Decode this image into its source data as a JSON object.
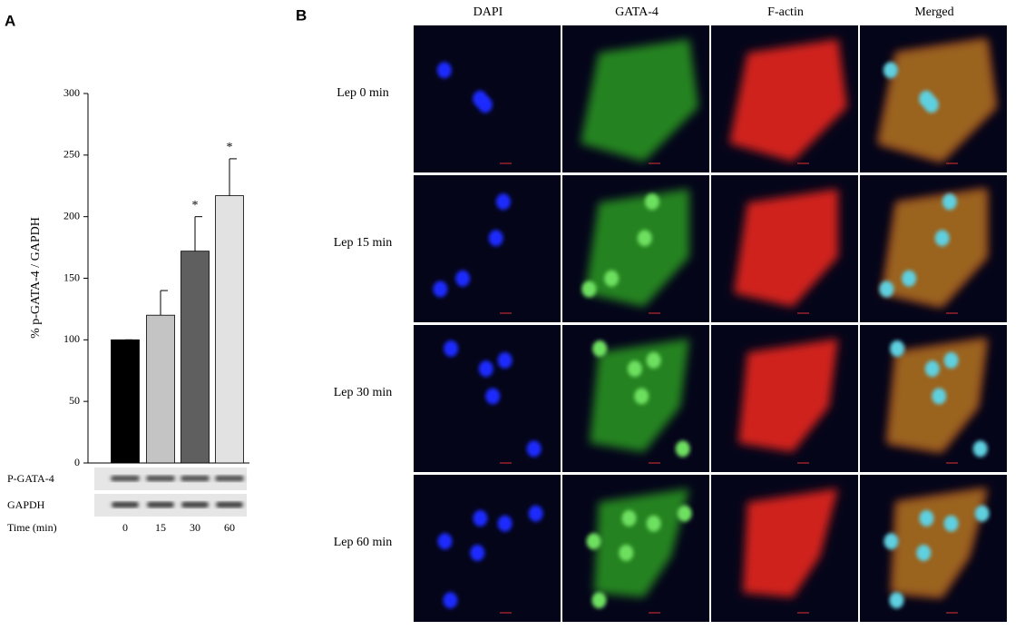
{
  "panel_labels": [
    "A",
    "B"
  ],
  "chart_data": {
    "type": "bar",
    "ylabel": "% p-GATA-4 / GAPDH",
    "categories": [
      "0",
      "15",
      "30",
      "60"
    ],
    "xlabel": "Time (min)",
    "values": [
      100,
      120,
      172,
      217
    ],
    "errors": [
      0,
      20,
      28,
      30
    ],
    "colors": [
      "#000000",
      "#c4c4c4",
      "#5f5f5f",
      "#e2e2e2"
    ],
    "annotations": [
      null,
      null,
      "*",
      "*"
    ],
    "ylim": [
      0,
      300
    ],
    "yticks": [
      0,
      50,
      100,
      150,
      200,
      250,
      300
    ]
  },
  "blot": {
    "rows": [
      "P-GATA-4",
      "GAPDH"
    ]
  },
  "microscopy": {
    "columns": [
      "DAPI",
      "GATA-4",
      "F-actin",
      "Merged"
    ],
    "rows": [
      "Lep 0 min",
      "Lep 15 min",
      "Lep 30 min",
      "Lep 60 min"
    ]
  }
}
